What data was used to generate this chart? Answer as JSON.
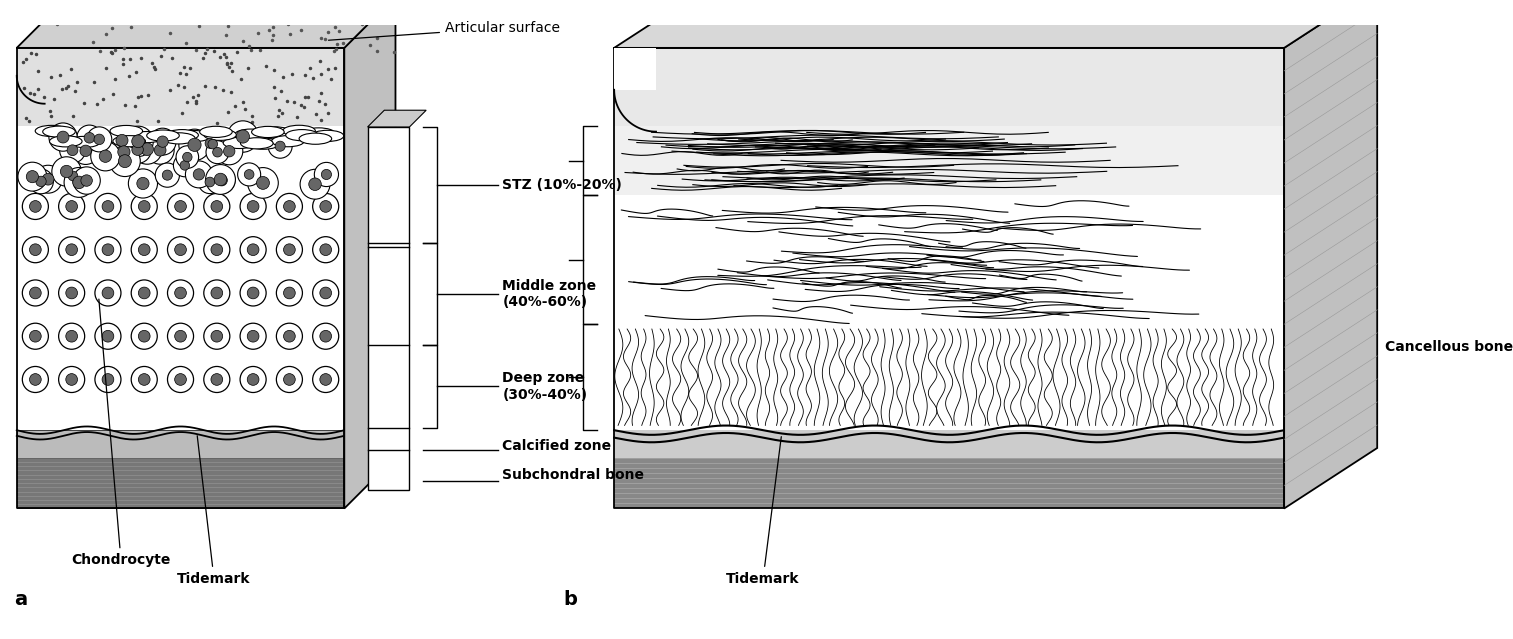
{
  "bg_color": "#ffffff",
  "line_color": "#000000",
  "fig_width": 15.13,
  "fig_height": 6.39,
  "labels": {
    "articular_surface": "Articular surface",
    "stz": "STZ (10%-20%)",
    "middle_zone": "Middle zone\n(40%-60%)",
    "deep_zone": "Deep zone\n(30%-40%)",
    "calcified_zone": "Calcified zone",
    "subchondral_bone": "Subchondral bone",
    "chondrocyte": "Chondrocyte",
    "tidemark_a": "Tidemark",
    "tidemark_b": "Tidemark",
    "cancellous_bone": "Cancellous bone",
    "label_a": "a",
    "label_b": "b"
  }
}
